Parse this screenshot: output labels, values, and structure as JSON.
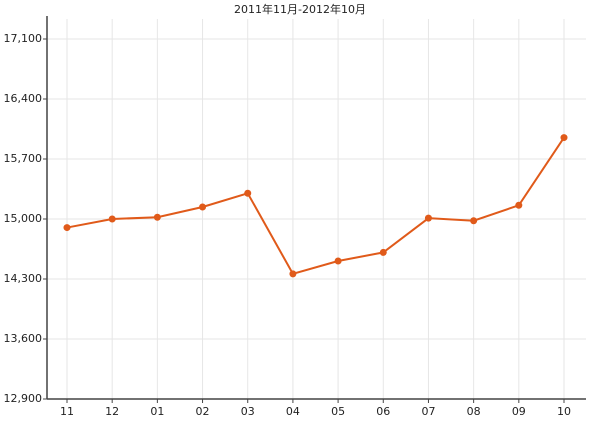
{
  "chart_data": {
    "type": "line",
    "title": "2011年11月-2012年10月",
    "categories": [
      "11",
      "12",
      "01",
      "02",
      "03",
      "04",
      "05",
      "06",
      "07",
      "08",
      "09",
      "10"
    ],
    "series": [
      {
        "color": "#e05a1a",
        "values": [
          14900,
          15000,
          15020,
          15140,
          15300,
          14360,
          14510,
          14610,
          15010,
          14980,
          15160,
          15950
        ]
      }
    ],
    "ylim": [
      12900,
      17100
    ],
    "yticks": [
      {
        "value": 12900,
        "label": "12,900"
      },
      {
        "value": 13600,
        "label": "13,600"
      },
      {
        "value": 14300,
        "label": "14,300"
      },
      {
        "value": 15000,
        "label": "15,000"
      },
      {
        "value": 15700,
        "label": "15,700"
      },
      {
        "value": 16400,
        "label": "16,400"
      },
      {
        "value": 17100,
        "label": "17,100"
      }
    ],
    "grid": true
  }
}
